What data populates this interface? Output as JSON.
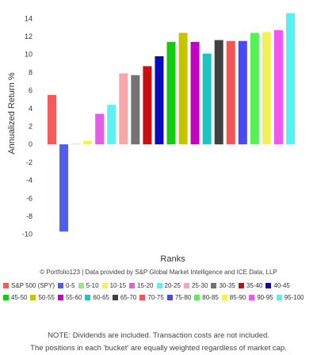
{
  "chart_data": {
    "type": "bar",
    "ylabel": "Annualized Return %",
    "xlabel": "Ranks",
    "ylim": [
      -11,
      15
    ],
    "yticks": [
      -10,
      -8,
      -6,
      -4,
      -2,
      0,
      2,
      4,
      6,
      8,
      10,
      12,
      14
    ],
    "grid": false,
    "legend_position": "bottom",
    "credit": "© Portfolio123 | Data provided by S&P Global Market Intelligence and ICE Data, LLP",
    "categories": [
      "S&P 500 (SPY)",
      "0-5",
      "5-10",
      "10-15",
      "15-20",
      "20-25",
      "25-30",
      "30-35",
      "35-40",
      "40-45",
      "45-50",
      "50-55",
      "55-60",
      "60-65",
      "65-70",
      "70-75",
      "75-80",
      "80-85",
      "85-90",
      "90-95",
      "95-100"
    ],
    "values": [
      5.5,
      -9.7,
      0.0,
      0.4,
      3.4,
      4.4,
      7.9,
      7.7,
      8.7,
      9.8,
      11.4,
      12.4,
      11.4,
      10.1,
      11.6,
      11.5,
      11.5,
      12.4,
      12.5,
      12.7,
      14.6
    ],
    "colors": [
      "#f45b5b",
      "#4f5ced",
      "#90ed7d",
      "#f7f73a",
      "#e55ce5",
      "#5cf2f2",
      "#f7a8a8",
      "#737373",
      "#c90f0f",
      "#0b0bbd",
      "#11cc11",
      "#c4c400",
      "#c400c4",
      "#1ec4c4",
      "#404040",
      "#f25555",
      "#4a4af2",
      "#55f255",
      "#f2f255",
      "#f255f2",
      "#55f2f2"
    ]
  },
  "notes": [
    "NOTE: Dividends are included. Transaction costs are not included.",
    "The positions in each 'bucket' are equally weighted regardless of market cap."
  ]
}
